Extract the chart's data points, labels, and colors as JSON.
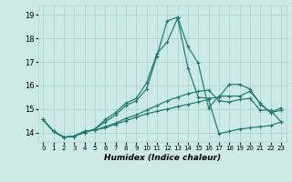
{
  "title": "",
  "xlabel": "Humidex (Indice chaleur)",
  "bg_color": "#cce9e7",
  "grid_color": "#aad4d0",
  "line_color": "#1a7a6e",
  "xlim": [
    -0.5,
    23.5
  ],
  "ylim": [
    13.6,
    19.4
  ],
  "yticks": [
    14,
    15,
    16,
    17,
    18,
    19
  ],
  "xticks": [
    0,
    1,
    2,
    3,
    4,
    5,
    6,
    7,
    8,
    9,
    10,
    11,
    12,
    13,
    14,
    15,
    16,
    17,
    18,
    19,
    20,
    21,
    22,
    23
  ],
  "series": [
    [
      14.55,
      14.05,
      13.8,
      13.85,
      14.0,
      14.15,
      14.55,
      14.85,
      15.25,
      15.45,
      16.1,
      17.35,
      17.85,
      18.85,
      16.75,
      15.5,
      15.45,
      15.5,
      16.05,
      16.05,
      15.85,
      15.2,
      14.85,
      14.95
    ],
    [
      14.55,
      14.05,
      13.8,
      13.85,
      14.0,
      14.15,
      14.45,
      14.75,
      15.15,
      15.35,
      15.85,
      17.25,
      18.75,
      18.9,
      17.65,
      16.95,
      15.05,
      15.55,
      15.55,
      15.55,
      15.75,
      15.25,
      14.85,
      15.05
    ],
    [
      14.55,
      14.05,
      13.8,
      13.85,
      14.05,
      14.1,
      14.25,
      14.4,
      14.6,
      14.75,
      14.95,
      15.15,
      15.35,
      15.5,
      15.65,
      15.75,
      15.8,
      15.35,
      15.3,
      15.4,
      15.45,
      14.95,
      14.95,
      14.45
    ],
    [
      14.55,
      14.05,
      13.8,
      13.85,
      14.05,
      14.1,
      14.2,
      14.35,
      14.5,
      14.65,
      14.8,
      14.9,
      15.0,
      15.1,
      15.2,
      15.3,
      15.4,
      13.95,
      14.05,
      14.15,
      14.2,
      14.25,
      14.3,
      14.45
    ]
  ]
}
